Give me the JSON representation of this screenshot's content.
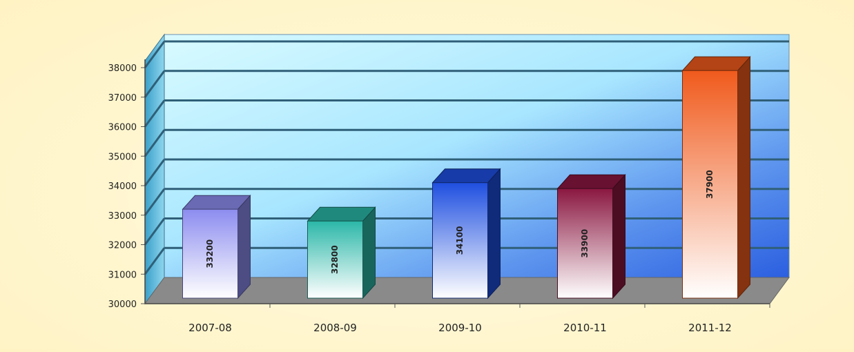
{
  "chart_data": {
    "type": "bar",
    "categories": [
      "2007-08",
      "2008-09",
      "2009-10",
      "2010-11",
      "2011-12"
    ],
    "values": [
      33200,
      32800,
      34100,
      33900,
      37900
    ],
    "data_labels": [
      "33200",
      "32800",
      "34100",
      "33900",
      "37900"
    ],
    "title": "",
    "xlabel": "",
    "ylabel": "",
    "ylim": [
      30000,
      38000
    ],
    "yticks": [
      30000,
      31000,
      32000,
      33000,
      34000,
      35000,
      36000,
      37000,
      38000
    ],
    "ytick_labels": [
      "30000",
      "31000",
      "32000",
      "33000",
      "34000",
      "35000",
      "36000",
      "37000",
      "38000"
    ],
    "grid": true,
    "legend": "none",
    "style": "3d",
    "colors": [
      "#8c8cf0",
      "#2bb7a8",
      "#1f4fe0",
      "#8a1740",
      "#f05a1c"
    ]
  }
}
